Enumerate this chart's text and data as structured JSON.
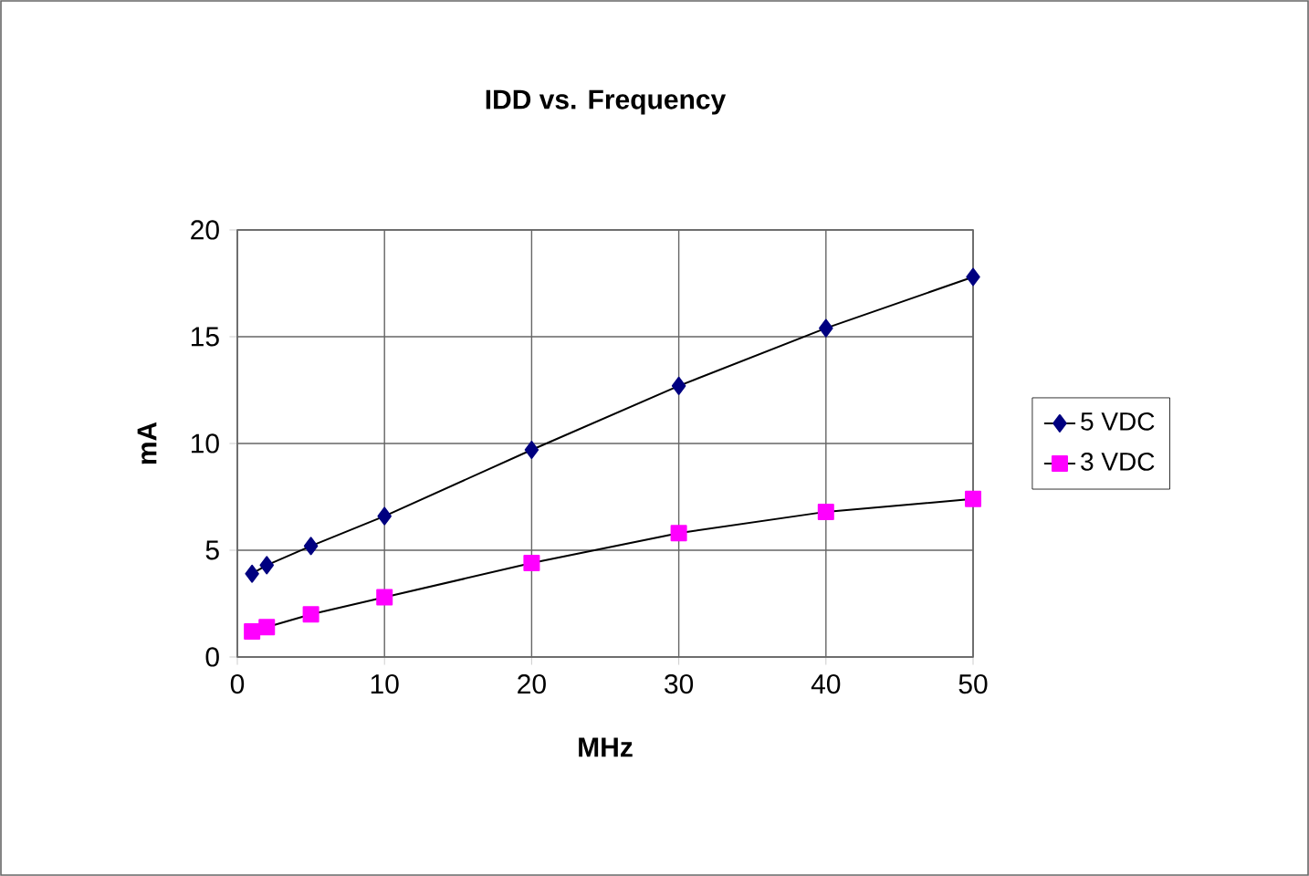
{
  "chart_data": {
    "type": "line",
    "title": "IDD vs. Frequency",
    "xlabel": "MHz",
    "ylabel": "mA",
    "x": [
      1,
      2,
      5,
      10,
      20,
      30,
      40,
      50
    ],
    "xlim": [
      0,
      50
    ],
    "xticks": [
      0,
      10,
      20,
      30,
      40,
      50
    ],
    "ylim": [
      0,
      20
    ],
    "yticks": [
      0,
      5,
      10,
      15,
      20
    ],
    "grid": true,
    "legend": "right",
    "line_style": "solid",
    "series": [
      {
        "name": "5 VDC",
        "color": "#000080",
        "marker": "diamond",
        "values": [
          3.9,
          4.3,
          5.2,
          6.6,
          9.7,
          12.7,
          15.4,
          17.8
        ]
      },
      {
        "name": "3 VDC",
        "color": "#ff00ff",
        "marker": "square",
        "values": [
          1.2,
          1.4,
          2.0,
          2.8,
          4.4,
          5.8,
          6.8,
          7.4
        ]
      }
    ]
  }
}
